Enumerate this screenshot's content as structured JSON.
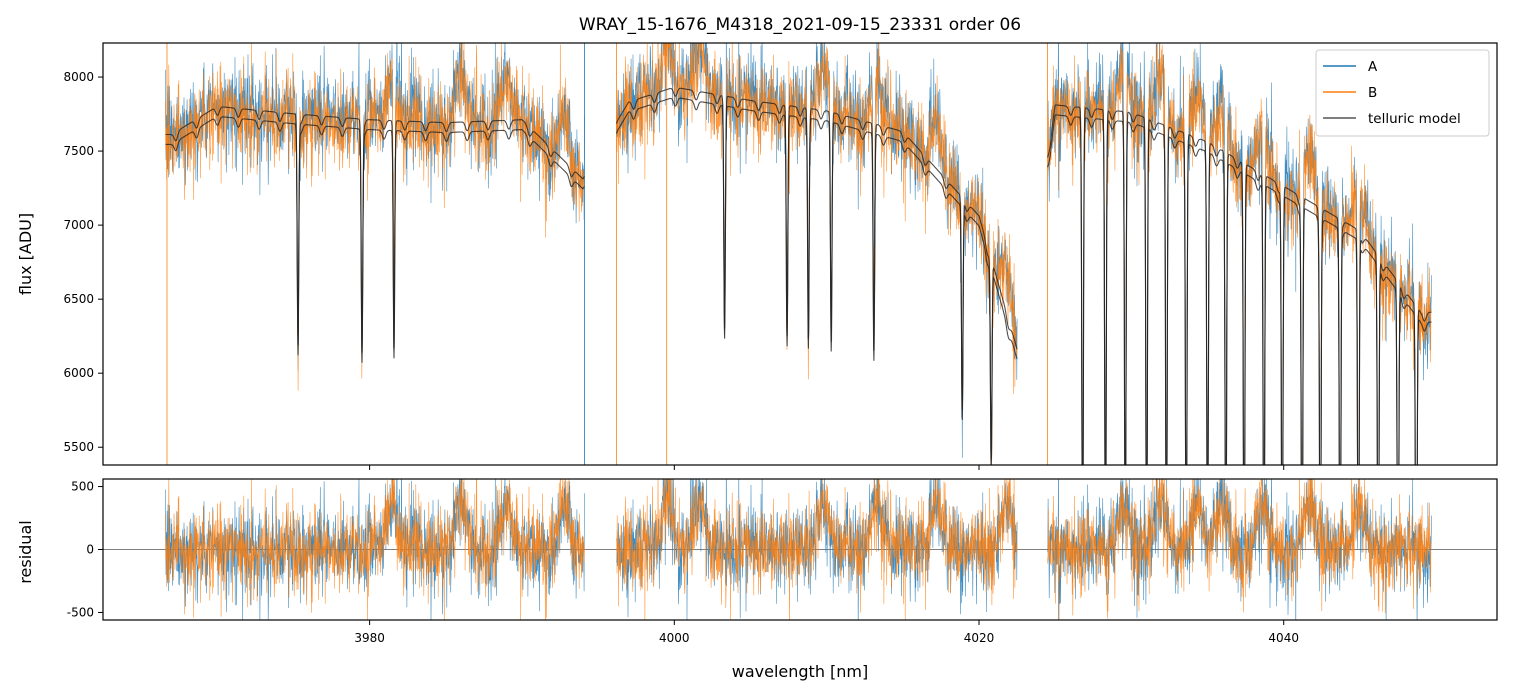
{
  "chart_data": [
    {
      "type": "line",
      "title": "WRAY_15-1676_M4318_2021-09-15_23331  order 06",
      "xlabel": "",
      "ylabel": "flux [ADU]",
      "xlim": [
        3962.5,
        4054.0
      ],
      "ylim": [
        5380,
        8230
      ],
      "yticks": [
        5500,
        6000,
        6500,
        7000,
        7500,
        8000
      ],
      "xticks": [
        3980,
        4000,
        4020,
        4040
      ],
      "legend": "top-right",
      "grid": false,
      "segments": [
        [
          3966.6,
          3994.1
        ],
        [
          3996.2,
          4022.5
        ],
        [
          4024.5,
          4049.7
        ]
      ],
      "series": [
        {
          "name": "A",
          "color": "#1f77b4",
          "description_points": {
            "x": [
              3967,
              3970,
              3975,
              3980,
              3985,
              3990,
              3994,
              3997,
              4000,
              4005,
              4010,
              4015,
              4020,
              4022,
              4025,
              4030,
              4035,
              4040,
              4045,
              4049
            ],
            "y": [
              7550,
              7750,
              7680,
              7660,
              7640,
              7640,
              7350,
              7800,
              7950,
              7800,
              7750,
              7600,
              7000,
              6000,
              7750,
              7700,
              7500,
              7200,
              6900,
              6300
            ]
          }
        },
        {
          "name": "B",
          "color": "#ff7f0e",
          "description_points": {
            "x": [
              3967,
              3970,
              3975,
              3980,
              3985,
              3990,
              3994,
              3997,
              4000,
              4005,
              4010,
              4015,
              4020,
              4022,
              4025,
              4030,
              4035,
              4040,
              4045,
              4049
            ],
            "y": [
              7500,
              7700,
              7650,
              7620,
              7620,
              7600,
              7300,
              7780,
              7920,
              7780,
              7720,
              7580,
              6950,
              5900,
              7720,
              7680,
              7480,
              7180,
              6880,
              6250
            ]
          }
        },
        {
          "name": "telluric model",
          "color": "#555555",
          "continuum": {
            "x": [
              3967,
              3970,
              3975,
              3980,
              3985,
              3990,
              3994,
              3997,
              4000,
              4005,
              4010,
              4015,
              4020,
              4022.5,
              4025,
              4030,
              4035,
              4040,
              4045,
              4049
            ],
            "y": [
              7600,
              7790,
              7740,
              7700,
              7680,
              7700,
              7300,
              7820,
              7920,
              7830,
              7760,
              7620,
              7050,
              6150,
              7800,
              7750,
              7550,
              7250,
              6950,
              6400
            ]
          },
          "deep_lines_x": [
            3975.3,
            3979.5,
            3981.6,
            4003.3,
            4007.4,
            4008.8,
            4010.3,
            4013.1,
            4018.9,
            4020.8,
            4026.8,
            4028.3,
            4029.6,
            4031.0,
            4032.3,
            4033.6,
            4035.0,
            4036.2,
            4037.4,
            4038.7,
            4039.9,
            4041.2,
            4042.4,
            4043.7,
            4044.9,
            4046.2,
            4047.5,
            4048.7
          ]
        }
      ]
    },
    {
      "type": "line",
      "title": "",
      "xlabel": "wavelength [nm]",
      "ylabel": "residual",
      "xlim": [
        3962.5,
        4054.0
      ],
      "ylim": [
        -560,
        560
      ],
      "yticks": [
        -500,
        0,
        500
      ],
      "xticks": [
        3980,
        4000,
        4020,
        4040
      ],
      "grid": false,
      "zero_line": true,
      "series": [
        {
          "name": "A",
          "color": "#1f77b4"
        },
        {
          "name": "B",
          "color": "#ff7f0e"
        }
      ],
      "bumps_x": [
        3981.5,
        3986.0,
        3989.0,
        3992.8,
        3999.5,
        4001.7,
        4009.8,
        4013.3,
        4017.2,
        4021.8,
        4029.5,
        4031.9,
        4034.3,
        4035.9,
        4038.6,
        4041.7,
        4045.0
      ]
    }
  ],
  "legend": {
    "items": [
      {
        "label": "A",
        "color": "#1f77b4"
      },
      {
        "label": "B",
        "color": "#ff7f0e"
      },
      {
        "label": "telluric model",
        "color": "#555555"
      }
    ]
  }
}
